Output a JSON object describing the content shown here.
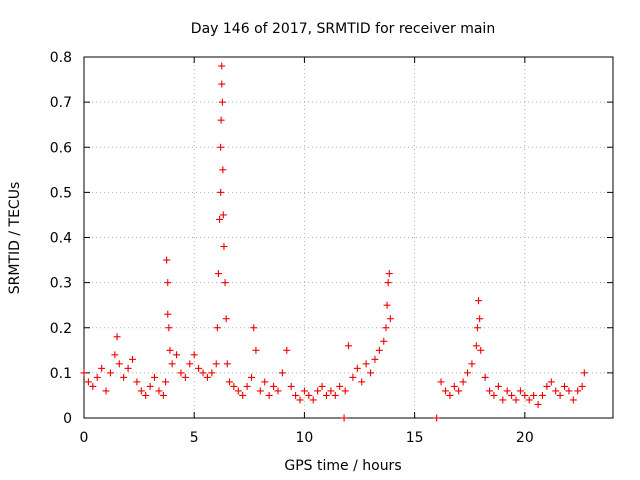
{
  "chart_data": {
    "type": "scatter",
    "title": "Day 146 of 2017, SRMTID for receiver main",
    "xlabel": "GPS time / hours",
    "ylabel": "SRMTID / TECUs",
    "xlim": [
      0,
      24
    ],
    "ylim": [
      0,
      0.8
    ],
    "xticks": [
      0,
      5,
      10,
      15,
      20
    ],
    "xtick_labels": [
      "0",
      "5",
      "10",
      "15",
      "20"
    ],
    "yticks": [
      0,
      0.1,
      0.2,
      0.3,
      0.4,
      0.5,
      0.6,
      0.7,
      0.8
    ],
    "ytick_labels": [
      "0",
      "0.1",
      "0.2",
      "0.3",
      "0.4",
      "0.5",
      "0.6",
      "0.7",
      "0.8"
    ],
    "grid": true,
    "marker": "+",
    "marker_color": "#ee0000",
    "series": [
      {
        "name": "SRMTID",
        "x": [
          0.0,
          0.2,
          0.4,
          0.6,
          0.8,
          1.0,
          1.2,
          1.4,
          1.5,
          1.6,
          1.8,
          2.0,
          2.2,
          2.4,
          2.6,
          2.8,
          3.0,
          3.2,
          3.4,
          3.6,
          3.7,
          3.75,
          3.8,
          3.8,
          3.85,
          3.9,
          4.0,
          4.2,
          4.4,
          4.6,
          4.8,
          5.0,
          5.2,
          5.4,
          5.6,
          5.8,
          6.0,
          6.05,
          6.1,
          6.15,
          6.2,
          6.2,
          6.22,
          6.25,
          6.25,
          6.28,
          6.3,
          6.32,
          6.35,
          6.4,
          6.45,
          6.5,
          6.6,
          6.8,
          7.0,
          7.2,
          7.4,
          7.6,
          7.7,
          7.8,
          8.0,
          8.2,
          8.4,
          8.6,
          8.8,
          9.0,
          9.2,
          9.4,
          9.6,
          9.8,
          10.0,
          10.2,
          10.4,
          10.6,
          10.8,
          11.0,
          11.2,
          11.4,
          11.6,
          11.8,
          11.85,
          12.0,
          12.2,
          12.4,
          12.6,
          12.8,
          13.0,
          13.2,
          13.4,
          13.6,
          13.7,
          13.75,
          13.8,
          13.85,
          13.9,
          16.0,
          16.2,
          16.4,
          16.6,
          16.8,
          17.0,
          17.2,
          17.4,
          17.6,
          17.8,
          17.85,
          17.9,
          17.95,
          18.0,
          18.2,
          18.4,
          18.6,
          18.8,
          19.0,
          19.2,
          19.4,
          19.6,
          19.8,
          20.0,
          20.2,
          20.4,
          20.6,
          20.8,
          21.0,
          21.2,
          21.4,
          21.6,
          21.8,
          22.0,
          22.2,
          22.4,
          22.6,
          22.7
        ],
        "y": [
          0.1,
          0.08,
          0.07,
          0.09,
          0.11,
          0.06,
          0.1,
          0.14,
          0.18,
          0.12,
          0.09,
          0.11,
          0.13,
          0.08,
          0.06,
          0.05,
          0.07,
          0.09,
          0.06,
          0.05,
          0.08,
          0.35,
          0.3,
          0.23,
          0.2,
          0.15,
          0.12,
          0.14,
          0.1,
          0.09,
          0.12,
          0.14,
          0.11,
          0.1,
          0.09,
          0.1,
          0.12,
          0.2,
          0.32,
          0.44,
          0.5,
          0.6,
          0.66,
          0.74,
          0.78,
          0.7,
          0.55,
          0.45,
          0.38,
          0.3,
          0.22,
          0.12,
          0.08,
          0.07,
          0.06,
          0.05,
          0.07,
          0.09,
          0.2,
          0.15,
          0.06,
          0.08,
          0.05,
          0.07,
          0.06,
          0.1,
          0.15,
          0.07,
          0.05,
          0.04,
          0.06,
          0.05,
          0.04,
          0.06,
          0.07,
          0.05,
          0.06,
          0.05,
          0.07,
          0.0,
          0.06,
          0.16,
          0.09,
          0.11,
          0.08,
          0.12,
          0.1,
          0.13,
          0.15,
          0.17,
          0.2,
          0.25,
          0.3,
          0.32,
          0.22,
          0.0,
          0.08,
          0.06,
          0.05,
          0.07,
          0.06,
          0.08,
          0.1,
          0.12,
          0.16,
          0.2,
          0.26,
          0.22,
          0.15,
          0.09,
          0.06,
          0.05,
          0.07,
          0.04,
          0.06,
          0.05,
          0.04,
          0.06,
          0.05,
          0.04,
          0.05,
          0.03,
          0.05,
          0.07,
          0.08,
          0.06,
          0.05,
          0.07,
          0.06,
          0.04,
          0.06,
          0.07,
          0.1
        ]
      }
    ]
  }
}
